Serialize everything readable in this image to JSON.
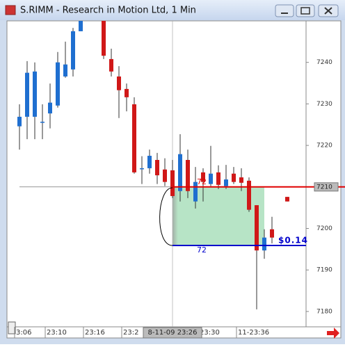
{
  "window": {
    "title": "S.RIMM - Research in Motion Ltd, 1 Min"
  },
  "chart_data": {
    "type": "candlestick",
    "open": [
      7224.6,
      7226.9,
      7226.9,
      7225.7,
      7227.7,
      7229.6,
      7236.6,
      7238.3,
      7247.5,
      null,
      null,
      7250.0,
      7240.8,
      7236.6,
      7233.6,
      7229.9,
      7214.5,
      7214.5,
      7216.5,
      7214.2,
      7214.0,
      7209.0,
      7216.5,
      7206.5,
      7213.5,
      7210.7,
      7213.5,
      7210.2,
      7213.2,
      7212.3,
      7211.5,
      7205.6,
      7194.7,
      7199.8,
      null,
      7207.6
    ],
    "high": [
      7229.9,
      7240.3,
      7240.0,
      7229.9,
      7234.9,
      7242.5,
      7245.0,
      7248.3,
      7250.0,
      null,
      null,
      7250.0,
      7243.3,
      7239.1,
      7234.9,
      7231.6,
      7217.4,
      7219.0,
      7218.2,
      7216.9,
      7216.5,
      7222.7,
      7219.0,
      7214.8,
      7214.5,
      7219.9,
      7215.2,
      7215.3,
      7214.8,
      7214.5,
      7212.3,
      7205.6,
      7199.8,
      7202.8,
      null,
      7207.6
    ],
    "low": [
      7219.0,
      7221.5,
      7221.5,
      7221.5,
      7224.1,
      7229.1,
      7236.3,
      7236.6,
      7247.5,
      null,
      null,
      7240.8,
      7236.6,
      7226.6,
      7228.2,
      7213.2,
      7210.7,
      7213.2,
      7210.7,
      7210.2,
      7207.3,
      7206.5,
      7207.3,
      7204.8,
      7206.5,
      7210.2,
      7209.5,
      7209.5,
      7210.7,
      7209.0,
      7204.0,
      7180.5,
      7192.7,
      7196.4,
      null,
      7206.5
    ],
    "close": [
      7226.9,
      7237.5,
      7237.8,
      7225.7,
      7230.3,
      7240.0,
      7239.5,
      7247.5,
      7250.0,
      null,
      null,
      7241.6,
      7237.8,
      7233.3,
      7231.6,
      7213.5,
      7214.5,
      7217.5,
      7212.8,
      7211.2,
      7207.8,
      7217.9,
      7209.0,
      7211.2,
      7211.2,
      7213.2,
      7210.5,
      7211.8,
      7211.2,
      7211.0,
      7204.5,
      7194.7,
      7197.8,
      7197.8,
      null,
      7206.5
    ],
    "up_color": "#1f6fd0",
    "down_color": "#d01818",
    "ylim": [
      7176.3,
      7250
    ],
    "yticks": [
      7180,
      7190,
      7200,
      7210,
      7220,
      7230,
      7240
    ],
    "xticks": [
      {
        "value": 0,
        "label": "3:06"
      },
      {
        "value": 4,
        "label": "23:10"
      },
      {
        "value": 9,
        "label": "23:16"
      },
      {
        "value": 14,
        "label": "23:2"
      },
      {
        "value": 24,
        "label": "23:30"
      },
      {
        "value": 29,
        "label": "11-23:36"
      }
    ],
    "crosshair": {
      "x": {
        "value": 20,
        "label": "8-11-09 23:26"
      },
      "y": {
        "value": 7210,
        "label": "7210"
      }
    },
    "zone": {
      "from": 20,
      "to": 32,
      "high": 7210,
      "low": 7195.9,
      "color": "#b7e4c6"
    },
    "red_level": {
      "value": 7210,
      "color": "#e00000",
      "label": "72"
    },
    "blue_level": {
      "value": 7195.9,
      "color": "#0000cc",
      "label": "72",
      "profit": "$0.14"
    }
  }
}
